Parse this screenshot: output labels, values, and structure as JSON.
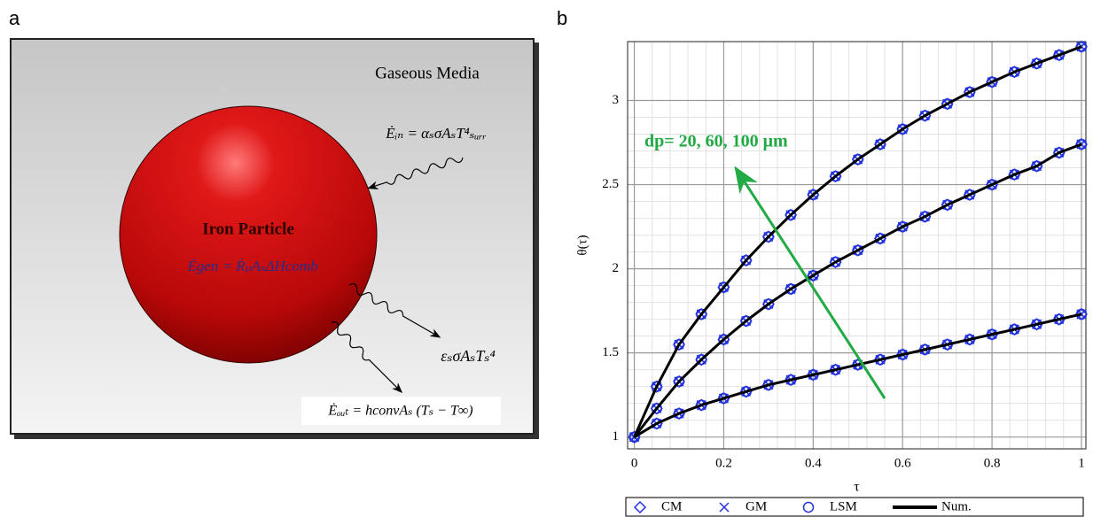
{
  "diagram": {
    "label": "a",
    "title": "Gaseous Media",
    "particle": "Iron Particle",
    "eq_in": "Ėᵢₙ = αₛσAₛT⁴ₛᵤᵣᵣ",
    "eq_gen": "Ėgen = ṘₚAₛΔHcomb",
    "eq_rad": "εₛσAₛTₛ⁴",
    "eq_out": "Ėₒᵤₜ = hconvAₛ (Tₛ − T∞)"
  },
  "chart_data": {
    "type": "line",
    "panel_label": "b",
    "x_label": "τ",
    "y_label": "θ(τ)",
    "annotation": "dp= 20, 60, 100 μm",
    "annotation_color": "#22aa44",
    "xlim": [
      -0.015,
      1.01
    ],
    "ylim": [
      0.93,
      3.35
    ],
    "xticks": [
      0,
      0.2,
      0.4,
      0.6,
      0.8,
      1
    ],
    "yticks": [
      1,
      1.5,
      2,
      2.5,
      3
    ],
    "grid": true,
    "x": [
      0,
      0.05,
      0.1,
      0.15,
      0.2,
      0.25,
      0.3,
      0.35,
      0.4,
      0.45,
      0.5,
      0.55,
      0.6,
      0.65,
      0.7,
      0.75,
      0.8,
      0.85,
      0.9,
      0.95,
      1
    ],
    "series": [
      {
        "name": "CM",
        "marker": "diamond",
        "color": "#2233dd",
        "curves": [
          [
            1,
            1.3,
            1.55,
            1.73,
            1.89,
            2.05,
            2.19,
            2.32,
            2.44,
            2.55,
            2.65,
            2.74,
            2.83,
            2.91,
            2.98,
            3.05,
            3.11,
            3.17,
            3.22,
            3.27,
            3.32
          ],
          [
            1,
            1.17,
            1.33,
            1.46,
            1.58,
            1.69,
            1.79,
            1.88,
            1.96,
            2.04,
            2.11,
            2.18,
            2.25,
            2.31,
            2.38,
            2.44,
            2.5,
            2.56,
            2.61,
            2.69,
            2.74
          ],
          [
            1,
            1.08,
            1.14,
            1.19,
            1.23,
            1.27,
            1.31,
            1.34,
            1.37,
            1.4,
            1.43,
            1.46,
            1.49,
            1.52,
            1.55,
            1.58,
            1.61,
            1.64,
            1.67,
            1.7,
            1.73
          ]
        ]
      },
      {
        "name": "GM",
        "marker": "x",
        "color": "#2233dd",
        "curves": [
          [
            1,
            1.3,
            1.55,
            1.73,
            1.89,
            2.05,
            2.19,
            2.32,
            2.44,
            2.55,
            2.65,
            2.74,
            2.83,
            2.91,
            2.98,
            3.05,
            3.11,
            3.17,
            3.22,
            3.27,
            3.32
          ],
          [
            1,
            1.17,
            1.33,
            1.46,
            1.58,
            1.69,
            1.79,
            1.88,
            1.96,
            2.04,
            2.11,
            2.18,
            2.25,
            2.31,
            2.38,
            2.44,
            2.5,
            2.56,
            2.61,
            2.69,
            2.74
          ],
          [
            1,
            1.08,
            1.14,
            1.19,
            1.23,
            1.27,
            1.31,
            1.34,
            1.37,
            1.4,
            1.43,
            1.46,
            1.49,
            1.52,
            1.55,
            1.58,
            1.61,
            1.64,
            1.67,
            1.7,
            1.73
          ]
        ]
      },
      {
        "name": "LSM",
        "marker": "circle",
        "color": "#2233dd",
        "curves": [
          [
            1,
            1.3,
            1.55,
            1.73,
            1.89,
            2.05,
            2.19,
            2.32,
            2.44,
            2.55,
            2.65,
            2.74,
            2.83,
            2.91,
            2.98,
            3.05,
            3.11,
            3.17,
            3.22,
            3.27,
            3.32
          ],
          [
            1,
            1.17,
            1.33,
            1.46,
            1.58,
            1.69,
            1.79,
            1.88,
            1.96,
            2.04,
            2.11,
            2.18,
            2.25,
            2.31,
            2.38,
            2.44,
            2.5,
            2.56,
            2.61,
            2.69,
            2.74
          ],
          [
            1,
            1.08,
            1.14,
            1.19,
            1.23,
            1.27,
            1.31,
            1.34,
            1.37,
            1.4,
            1.43,
            1.46,
            1.49,
            1.52,
            1.55,
            1.58,
            1.61,
            1.64,
            1.67,
            1.7,
            1.73
          ]
        ]
      },
      {
        "name": "Num.",
        "marker": "line",
        "color": "#000000",
        "curves": [
          [
            1,
            1.3,
            1.55,
            1.73,
            1.89,
            2.05,
            2.19,
            2.32,
            2.44,
            2.55,
            2.65,
            2.74,
            2.83,
            2.91,
            2.98,
            3.05,
            3.11,
            3.17,
            3.22,
            3.27,
            3.32
          ],
          [
            1,
            1.17,
            1.33,
            1.46,
            1.58,
            1.69,
            1.79,
            1.88,
            1.96,
            2.04,
            2.11,
            2.18,
            2.25,
            2.31,
            2.38,
            2.44,
            2.5,
            2.56,
            2.61,
            2.69,
            2.74
          ],
          [
            1,
            1.08,
            1.14,
            1.19,
            1.23,
            1.27,
            1.31,
            1.34,
            1.37,
            1.4,
            1.43,
            1.46,
            1.49,
            1.52,
            1.55,
            1.58,
            1.61,
            1.64,
            1.67,
            1.7,
            1.73
          ]
        ]
      }
    ]
  }
}
